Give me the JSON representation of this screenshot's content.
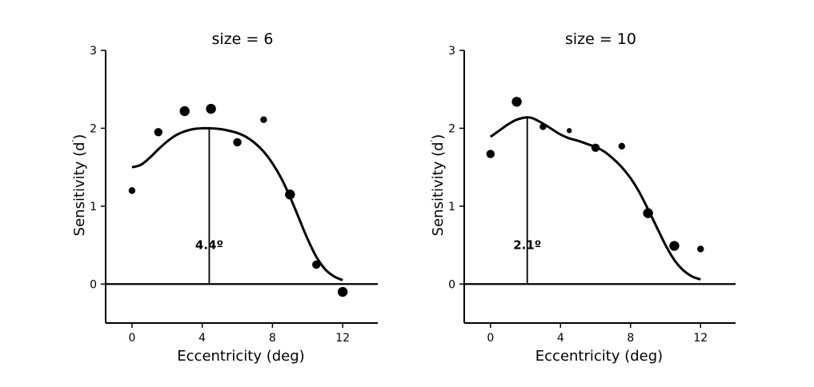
{
  "chart_data": [
    {
      "type": "scatter",
      "title": "size = 6",
      "xlabel": "Eccentricity (deg)",
      "ylabel_main": "Sensitivity (d",
      "ylabel_sup": "′",
      "ylabel_close": ")",
      "xlim": [
        -1.5,
        14
      ],
      "ylim": [
        -0.5,
        3
      ],
      "xticks": [
        0,
        4,
        8,
        12
      ],
      "yticks": [
        0,
        1,
        2,
        3
      ],
      "points": [
        {
          "x": 0,
          "y": 1.2,
          "weight": "small"
        },
        {
          "x": 1.5,
          "y": 1.95,
          "weight": "medium"
        },
        {
          "x": 3,
          "y": 2.22,
          "weight": "large"
        },
        {
          "x": 4.5,
          "y": 2.25,
          "weight": "large"
        },
        {
          "x": 6,
          "y": 1.82,
          "weight": "medium"
        },
        {
          "x": 7.5,
          "y": 2.11,
          "weight": "small"
        },
        {
          "x": 9,
          "y": 1.15,
          "weight": "large"
        },
        {
          "x": 10.5,
          "y": 0.25,
          "weight": "medium"
        },
        {
          "x": 12,
          "y": -0.1,
          "weight": "large"
        }
      ],
      "fit_curve": [
        [
          0,
          1.5
        ],
        [
          0.5,
          1.53
        ],
        [
          1,
          1.62
        ],
        [
          1.5,
          1.73
        ],
        [
          2,
          1.83
        ],
        [
          2.5,
          1.91
        ],
        [
          3,
          1.96
        ],
        [
          3.5,
          1.99
        ],
        [
          4,
          2.0
        ],
        [
          4.4,
          2.0
        ],
        [
          5,
          1.99
        ],
        [
          5.5,
          1.97
        ],
        [
          6,
          1.94
        ],
        [
          6.5,
          1.89
        ],
        [
          7,
          1.81
        ],
        [
          7.5,
          1.7
        ],
        [
          8,
          1.55
        ],
        [
          8.5,
          1.36
        ],
        [
          9,
          1.12
        ],
        [
          9.5,
          0.85
        ],
        [
          10,
          0.58
        ],
        [
          10.5,
          0.35
        ],
        [
          11,
          0.19
        ],
        [
          11.5,
          0.1
        ],
        [
          12,
          0.05
        ]
      ],
      "peak_x": 4.4,
      "peak_y": 2.0,
      "peak_label": "4.4º",
      "peak_label_y": 0.45
    },
    {
      "type": "scatter",
      "title": "size = 10",
      "xlabel": "Eccentricity (deg)",
      "ylabel_main": "Sensitivity (d",
      "ylabel_sup": "′",
      "ylabel_close": ")",
      "xlim": [
        -1.5,
        14
      ],
      "ylim": [
        -0.5,
        3
      ],
      "xticks": [
        0,
        4,
        8,
        12
      ],
      "yticks": [
        0,
        1,
        2,
        3
      ],
      "points": [
        {
          "x": 0,
          "y": 1.67,
          "weight": "medium"
        },
        {
          "x": 1.5,
          "y": 2.34,
          "weight": "large"
        },
        {
          "x": 3,
          "y": 2.02,
          "weight": "small"
        },
        {
          "x": 4.5,
          "y": 1.97,
          "weight": "tiny"
        },
        {
          "x": 6,
          "y": 1.75,
          "weight": "medium"
        },
        {
          "x": 7.5,
          "y": 1.77,
          "weight": "small"
        },
        {
          "x": 9,
          "y": 0.91,
          "weight": "large"
        },
        {
          "x": 10.5,
          "y": 0.49,
          "weight": "large"
        },
        {
          "x": 12,
          "y": 0.45,
          "weight": "small"
        }
      ],
      "fit_curve": [
        [
          0,
          1.89
        ],
        [
          0.5,
          1.97
        ],
        [
          1,
          2.05
        ],
        [
          1.5,
          2.11
        ],
        [
          2.1,
          2.14
        ],
        [
          2.5,
          2.12
        ],
        [
          3,
          2.06
        ],
        [
          3.5,
          1.99
        ],
        [
          4,
          1.92
        ],
        [
          4.5,
          1.87
        ],
        [
          5,
          1.84
        ],
        [
          5.5,
          1.8
        ],
        [
          6,
          1.76
        ],
        [
          6.5,
          1.7
        ],
        [
          7,
          1.61
        ],
        [
          7.5,
          1.5
        ],
        [
          8,
          1.36
        ],
        [
          8.5,
          1.18
        ],
        [
          9,
          0.96
        ],
        [
          9.5,
          0.73
        ],
        [
          10,
          0.5
        ],
        [
          10.5,
          0.31
        ],
        [
          11,
          0.18
        ],
        [
          11.5,
          0.1
        ],
        [
          12,
          0.06
        ]
      ],
      "peak_x": 2.1,
      "peak_y": 2.14,
      "peak_label": "2.1º",
      "peak_label_y": 0.45
    }
  ]
}
